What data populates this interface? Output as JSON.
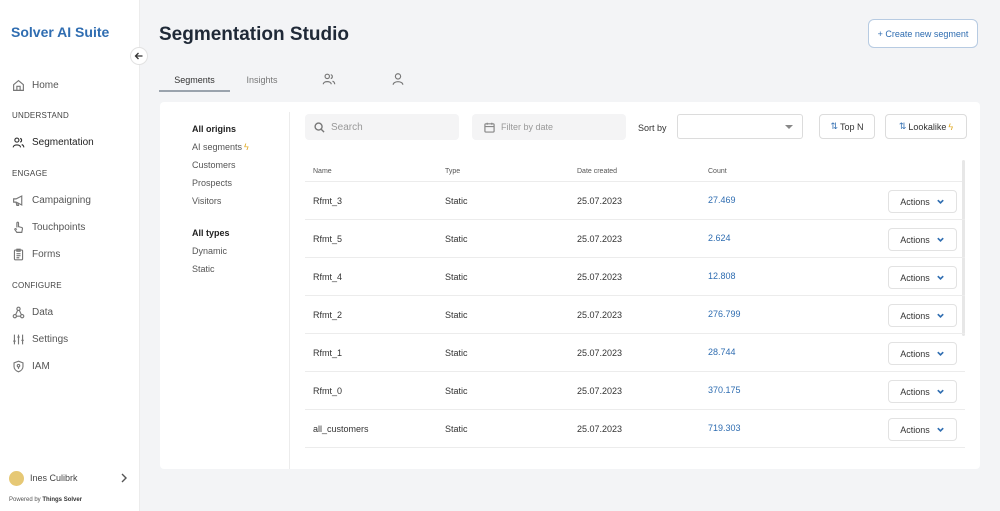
{
  "sidebar": {
    "brand": "Solver AI Suite",
    "home": "Home",
    "section_understand": "UNDERSTAND",
    "segmentation": "Segmentation",
    "section_engage": "ENGAGE",
    "campaigning": "Campaigning",
    "touchpoints": "Touchpoints",
    "forms": "Forms",
    "section_configure": "CONFIGURE",
    "data": "Data",
    "settings": "Settings",
    "iam": "IAM",
    "user_name": "Ines Culibrk",
    "powered_prefix": "Powered by",
    "powered_brand": "Things Solver"
  },
  "header": {
    "title": "Segmentation Studio",
    "create_button": "+ Create new segment"
  },
  "tabs": {
    "segments": "Segments",
    "insights": "Insights"
  },
  "filters": {
    "all_origins": "All origins",
    "ai_segments": "AI segments",
    "customers": "Customers",
    "prospects": "Prospects",
    "visitors": "Visitors",
    "all_types": "All types",
    "dynamic": "Dynamic",
    "static": "Static"
  },
  "toolbar": {
    "search_placeholder": "Search",
    "date_placeholder": "Filter by date",
    "sort_label": "Sort by",
    "sort_value": "",
    "top_n": "Top N",
    "lookalike": "Lookalike"
  },
  "table": {
    "headers": [
      "Name",
      "Type",
      "Date created",
      "Count"
    ],
    "actions_label": "Actions",
    "rows": [
      {
        "name": "Rfmt_3",
        "type": "Static",
        "date": "25.07.2023",
        "count": "27.469"
      },
      {
        "name": "Rfmt_5",
        "type": "Static",
        "date": "25.07.2023",
        "count": "2.624"
      },
      {
        "name": "Rfmt_4",
        "type": "Static",
        "date": "25.07.2023",
        "count": "12.808"
      },
      {
        "name": "Rfmt_2",
        "type": "Static",
        "date": "25.07.2023",
        "count": "276.799"
      },
      {
        "name": "Rfmt_1",
        "type": "Static",
        "date": "25.07.2023",
        "count": "28.744"
      },
      {
        "name": "Rfmt_0",
        "type": "Static",
        "date": "25.07.2023",
        "count": "370.175"
      },
      {
        "name": "all_customers",
        "type": "Static",
        "date": "25.07.2023",
        "count": "719.303"
      }
    ]
  },
  "colors": {
    "accent": "#2f6db1",
    "spark": "#e0a822",
    "avatar": "#e6c875"
  }
}
